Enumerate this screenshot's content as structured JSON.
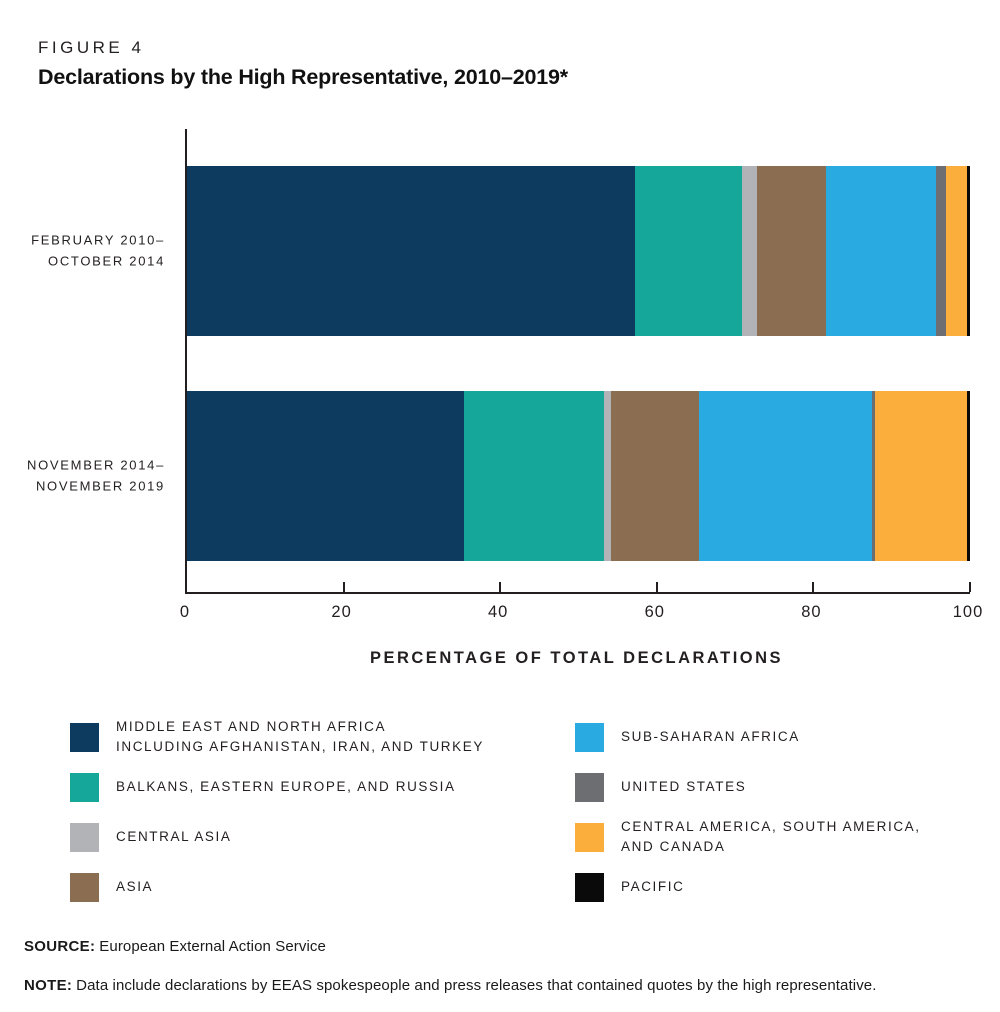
{
  "figure_label": "FIGURE 4",
  "title": "Declarations by the High Representative, 2010–2019*",
  "chart_data": {
    "type": "bar",
    "orientation": "horizontal",
    "stacked": true,
    "categories": [
      [
        "FEBRUARY 2010–",
        "OCTOBER 2014"
      ],
      [
        "NOVEMBER 2014–",
        "NOVEMBER 2019"
      ]
    ],
    "series": [
      {
        "name": "MIDDLE EAST AND NORTH AFRICA INCLUDING AFGHANISTAN, IRAN, AND TURKEY",
        "color": "#0d3b5f",
        "values": [
          57.2,
          35.4
        ]
      },
      {
        "name": "BALKANS, EASTERN EUROPE, AND RUSSIA",
        "color": "#14a79a",
        "values": [
          13.7,
          17.8
        ]
      },
      {
        "name": "CENTRAL ASIA",
        "color": "#b1b3b6",
        "values": [
          1.9,
          1.0
        ]
      },
      {
        "name": "ASIA",
        "color": "#8b6d52",
        "values": [
          8.8,
          11.2
        ]
      },
      {
        "name": "SUB-SAHARAN AFRICA",
        "color": "#29aae1",
        "values": [
          14.0,
          22.1
        ]
      },
      {
        "name": "UNITED STATES",
        "color": "#6d6e71",
        "values": [
          1.3,
          0.4
        ]
      },
      {
        "name": "CENTRAL AMERICA, SOUTH AMERICA, AND CANADA",
        "color": "#fbae3c",
        "values": [
          2.7,
          11.7
        ]
      },
      {
        "name": "PACIFIC",
        "color": "#0a0a0a",
        "values": [
          0.4,
          0.4
        ]
      }
    ],
    "xlabel": "PERCENTAGE OF TOTAL DECLARATIONS",
    "xlim": [
      0,
      100
    ],
    "xticks": [
      0,
      20,
      40,
      60,
      80,
      100
    ],
    "grid": false,
    "legend_position": "bottom"
  },
  "legend": {
    "columns": [
      [
        {
          "series": 0,
          "lines": [
            "MIDDLE EAST AND NORTH AFRICA",
            "INCLUDING AFGHANISTAN, IRAN, AND TURKEY"
          ]
        },
        {
          "series": 1,
          "lines": [
            "BALKANS, EASTERN EUROPE, AND RUSSIA"
          ]
        },
        {
          "series": 2,
          "lines": [
            "CENTRAL ASIA"
          ]
        },
        {
          "series": 3,
          "lines": [
            "ASIA"
          ]
        }
      ],
      [
        {
          "series": 4,
          "lines": [
            "SUB-SAHARAN AFRICA"
          ]
        },
        {
          "series": 5,
          "lines": [
            "UNITED STATES"
          ]
        },
        {
          "series": 6,
          "lines": [
            "CENTRAL AMERICA, SOUTH AMERICA,",
            "AND CANADA"
          ]
        },
        {
          "series": 7,
          "lines": [
            "PACIFIC"
          ]
        }
      ]
    ]
  },
  "footer": {
    "source_label": "SOURCE:",
    "source_text": "European External Action Service",
    "note_label": "NOTE:",
    "note_text": "Data include declarations by EEAS spokespeople and press releases that contained quotes by the high representative."
  },
  "colors": {
    "axis": "#231f20",
    "text": "#231f20"
  }
}
